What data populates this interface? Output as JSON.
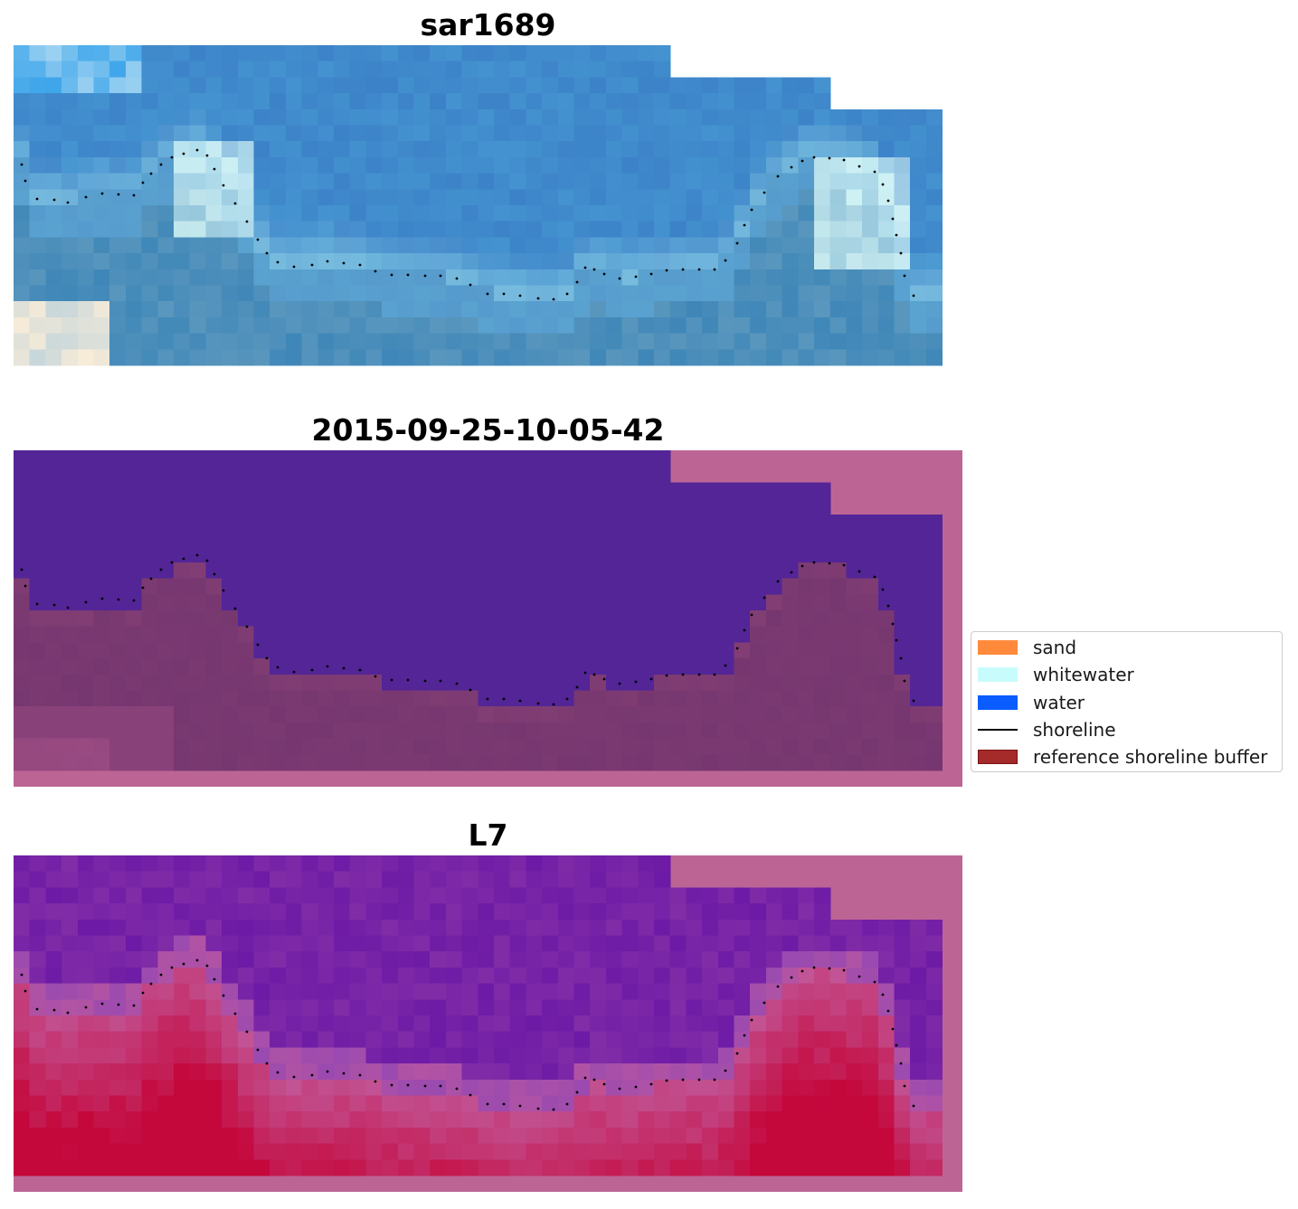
{
  "panels": [
    {
      "title": "sar1689",
      "style": "rgb"
    },
    {
      "title": "2015-09-25-10-05-42",
      "style": "classified"
    },
    {
      "title": "L7",
      "style": "index"
    }
  ],
  "legend": {
    "items": [
      {
        "label": "sand",
        "color": "#ff8a3c",
        "kind": "patch"
      },
      {
        "label": "whitewater",
        "color": "#c8fcfc",
        "kind": "patch"
      },
      {
        "label": "water",
        "color": "#0b5cff",
        "kind": "patch"
      },
      {
        "label": "shoreline",
        "color": "#000000",
        "kind": "line"
      },
      {
        "label": "reference shoreline buffer",
        "color": "#a52a2a",
        "kind": "patch"
      }
    ]
  },
  "colors": {
    "nodata": "#bc6595",
    "classified_water": "#532597",
    "classified_land": "#76366f",
    "index_low": "#6d1aa6",
    "index_high": "#c4083c",
    "rgb_water": "#3c82c8",
    "rgb_surf": "#dcfaf8"
  }
}
